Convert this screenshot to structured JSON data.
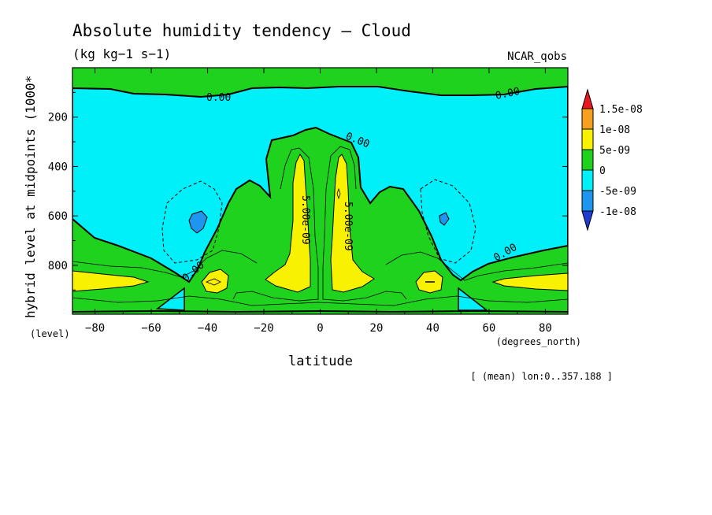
{
  "chart_data": {
    "type": "heatmap",
    "title": "Absolute humidity tendency — Cloud",
    "subtitle": "(kg kg−1 s−1)",
    "dataset": "NCAR_qobs",
    "xlabel": "latitude",
    "x_unit": "(degrees_north)",
    "ylabel": "hybrid level at midpoints (1000*",
    "y_unit": "(level)",
    "footnote": "[ (mean) lon:0..357.188 ]",
    "xlim": [
      -88,
      88
    ],
    "ylim": [
      998,
      0
    ],
    "x_ticks": [
      -80,
      -60,
      -40,
      -20,
      0,
      20,
      40,
      60,
      80
    ],
    "y_ticks": [
      200,
      400,
      600,
      800
    ],
    "colorbar": {
      "levels": [
        "1.5e-08",
        "1e-08",
        "5e-09",
        "0",
        "-5e-09",
        "-1e-08"
      ],
      "colors": [
        "#e8161e",
        "#f6a01f",
        "#f8f200",
        "#1ed21e",
        "#00f0fa",
        "#1e96f0",
        "#1e3cd2"
      ]
    },
    "contour_labels": [
      "0.00",
      "0.00",
      "0.00",
      "0.00",
      "0.00",
      "5.00e-09",
      "5.00e-09"
    ]
  }
}
